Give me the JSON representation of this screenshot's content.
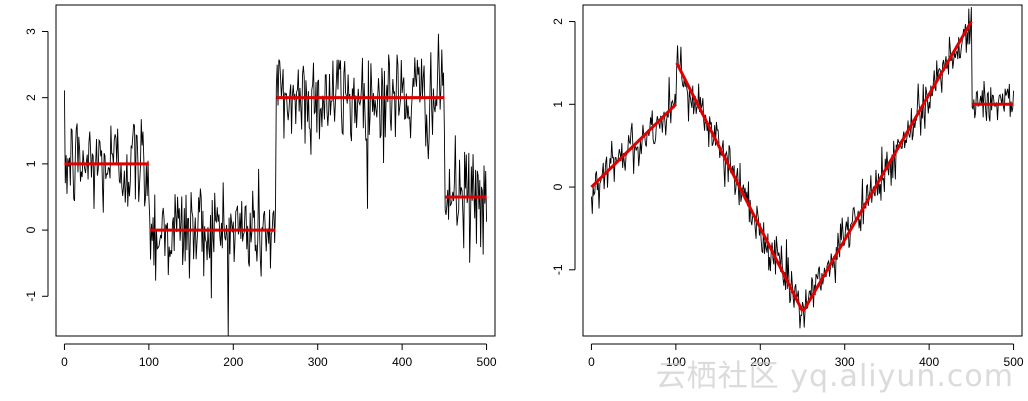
{
  "watermark": "云栖社区 yq.aliyun.com",
  "colors": {
    "signal": "#000000",
    "fit": "#dd0000",
    "axis": "#000000"
  },
  "chart_data": [
    {
      "type": "line",
      "title": "",
      "xlabel": "",
      "ylabel": "",
      "xlim": [
        -10,
        510
      ],
      "ylim": [
        -1.6,
        3.4
      ],
      "xticks": [
        0,
        100,
        200,
        300,
        400,
        500
      ],
      "yticks": [
        -1,
        0,
        1,
        2,
        3
      ],
      "grid": false,
      "series": [
        {
          "kind": "noisy-signal",
          "segments": [
            {
              "x": [
                0,
                100
              ],
              "y": [
                1,
                1
              ],
              "noise_sd": 0.4
            },
            {
              "x": [
                101,
                250
              ],
              "y": [
                0,
                0
              ],
              "noise_sd": 0.4
            },
            {
              "x": [
                251,
                450
              ],
              "y": [
                2,
                2
              ],
              "noise_sd": 0.4
            },
            {
              "x": [
                451,
                500
              ],
              "y": [
                0.5,
                0.5
              ],
              "noise_sd": 0.4
            }
          ]
        },
        {
          "kind": "fitted-segments",
          "segments": [
            {
              "x": [
                0,
                100
              ],
              "y": [
                1,
                1
              ]
            },
            {
              "x": [
                101,
                250
              ],
              "y": [
                0,
                0
              ]
            },
            {
              "x": [
                251,
                450
              ],
              "y": [
                2,
                2
              ]
            },
            {
              "x": [
                451,
                500
              ],
              "y": [
                0.5,
                0.5
              ]
            }
          ]
        }
      ]
    },
    {
      "type": "line",
      "title": "",
      "xlabel": "",
      "ylabel": "",
      "xlim": [
        -10,
        510
      ],
      "ylim": [
        -1.8,
        2.2
      ],
      "xticks": [
        0,
        100,
        200,
        300,
        400,
        500
      ],
      "yticks": [
        -1,
        0,
        1,
        2
      ],
      "grid": false,
      "series": [
        {
          "kind": "noisy-signal",
          "segments": [
            {
              "x": [
                0,
                100
              ],
              "y": [
                0,
                1
              ],
              "noise_sd": 0.15
            },
            {
              "x": [
                101,
                250
              ],
              "y": [
                1.5,
                -1.5
              ],
              "noise_sd": 0.15
            },
            {
              "x": [
                251,
                450
              ],
              "y": [
                -1.5,
                2
              ],
              "noise_sd": 0.15
            },
            {
              "x": [
                451,
                500
              ],
              "y": [
                1,
                1
              ],
              "noise_sd": 0.15
            }
          ]
        },
        {
          "kind": "fitted-segments",
          "segments": [
            {
              "x": [
                0,
                100
              ],
              "y": [
                0,
                1
              ]
            },
            {
              "x": [
                101,
                250
              ],
              "y": [
                1.5,
                -1.5
              ]
            },
            {
              "x": [
                251,
                450
              ],
              "y": [
                -1.5,
                2
              ]
            },
            {
              "x": [
                451,
                500
              ],
              "y": [
                1,
                1
              ]
            }
          ]
        }
      ]
    }
  ]
}
